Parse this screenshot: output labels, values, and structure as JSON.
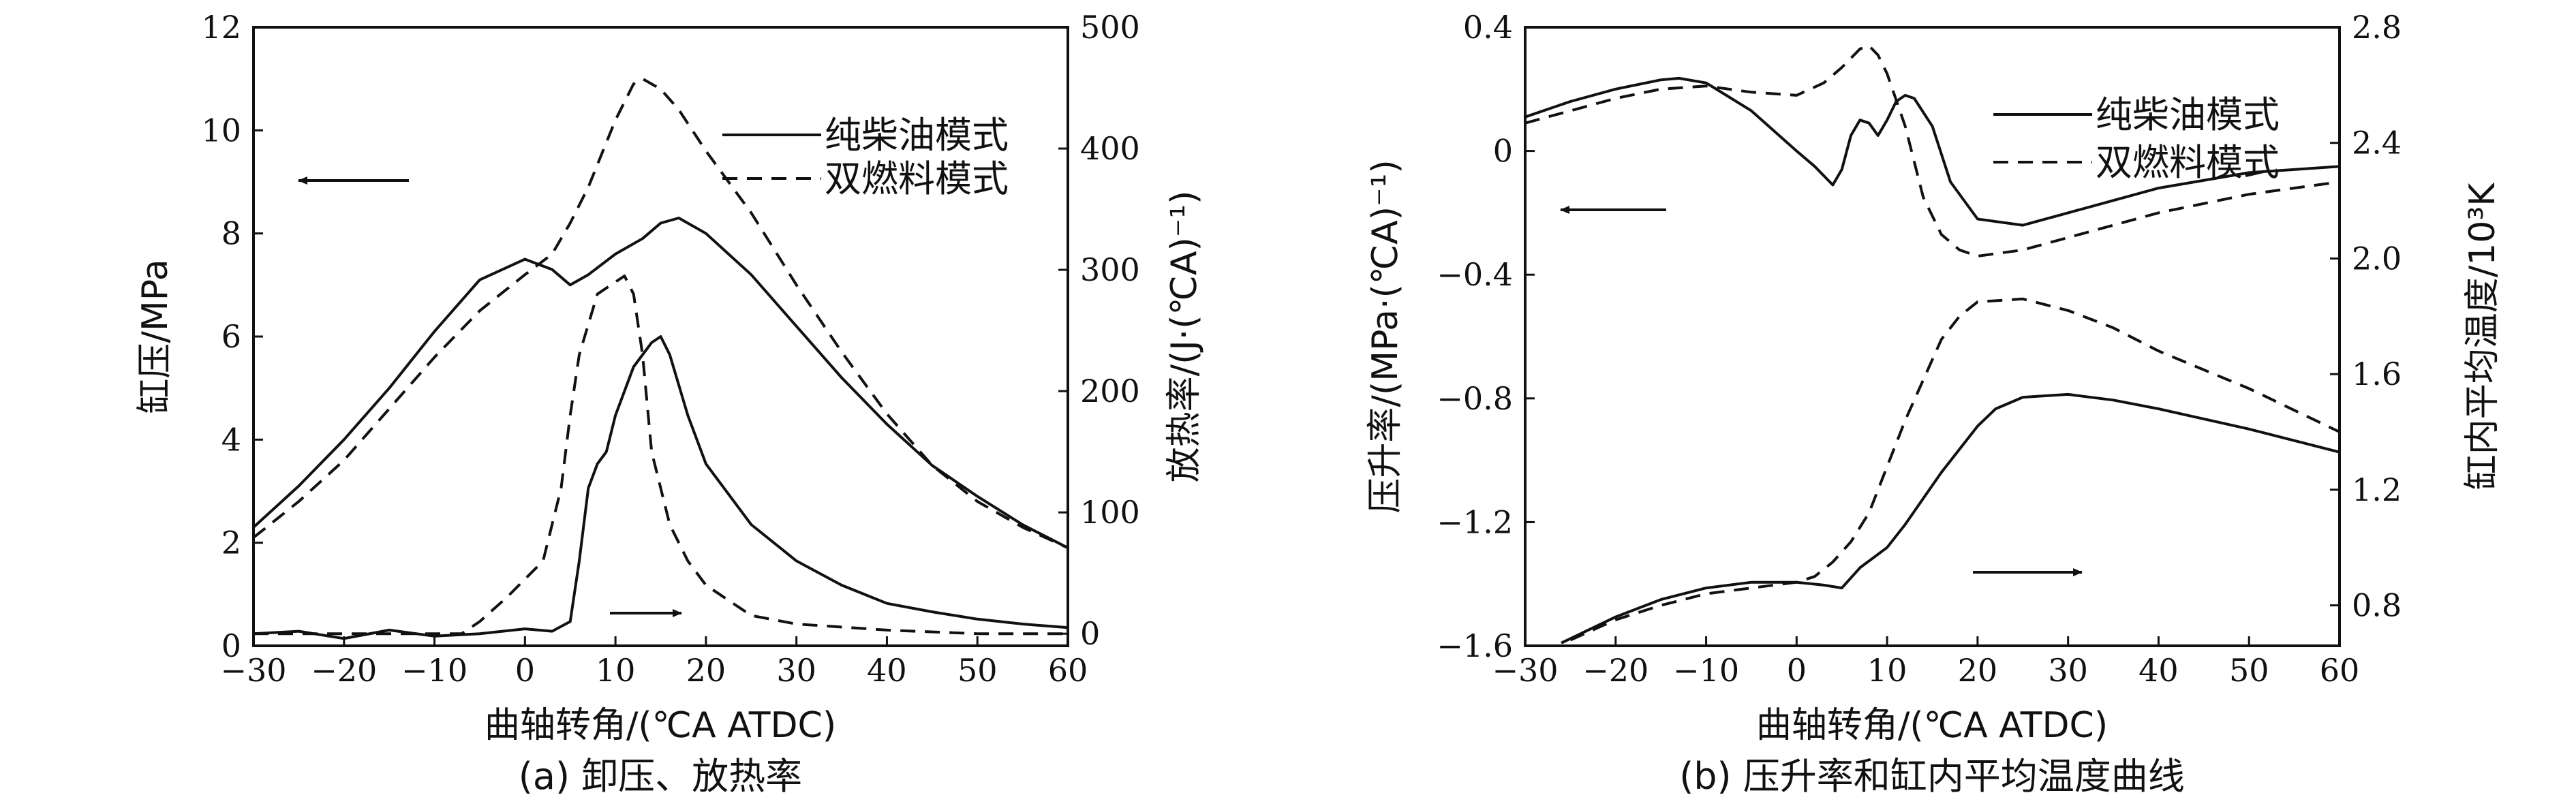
{
  "chart_data": [
    {
      "type": "line",
      "caption": "(a) 卸压、放热率",
      "xlabel": "曲轴转角/(℃A ATDC)",
      "ylabel": "缸压/MPa",
      "y2label": "放热率/(J·(℃A)⁻¹)",
      "xlim": [
        -30,
        60
      ],
      "ylim": [
        0,
        12
      ],
      "y2lim": [
        -10,
        500
      ],
      "xticks": [
        "−30",
        "−20",
        "−10",
        "0",
        "10",
        "20",
        "30",
        "40",
        "50",
        "60"
      ],
      "yticks": [
        "0",
        "2",
        "4",
        "6",
        "8",
        "10",
        "12"
      ],
      "y2ticks": [
        "0",
        "100",
        "200",
        "300",
        "400",
        "500"
      ],
      "legend": {
        "position": "top-right",
        "entries": [
          "纯柴油模式",
          "双燃料模式"
        ]
      },
      "arrows": [
        "left arrow → cylinder pressure axis",
        "right arrow → heat release rate axis"
      ],
      "series": [
        {
          "name": "纯柴油模式",
          "axis": "left",
          "style": "solid",
          "x": [
            -30,
            -25,
            -20,
            -15,
            -10,
            -5,
            0,
            3,
            5,
            7,
            10,
            13,
            15,
            17,
            20,
            25,
            30,
            35,
            40,
            45,
            50,
            55,
            60
          ],
          "y": [
            2.3,
            3.1,
            4.0,
            5.0,
            6.1,
            7.1,
            7.5,
            7.3,
            7.0,
            7.2,
            7.6,
            7.9,
            8.2,
            8.3,
            8.0,
            7.2,
            6.2,
            5.2,
            4.3,
            3.5,
            2.9,
            2.35,
            1.9
          ]
        },
        {
          "name": "双燃料模式",
          "axis": "left",
          "style": "dashed",
          "x": [
            -30,
            -25,
            -20,
            -15,
            -10,
            -5,
            0,
            3,
            5,
            7,
            10,
            12,
            13,
            15,
            17,
            20,
            25,
            30,
            35,
            40,
            45,
            50,
            55,
            60
          ],
          "y": [
            2.1,
            2.8,
            3.6,
            4.6,
            5.6,
            6.5,
            7.2,
            7.6,
            8.2,
            8.9,
            10.2,
            10.9,
            11.0,
            10.8,
            10.4,
            9.6,
            8.4,
            7.0,
            5.7,
            4.5,
            3.5,
            2.8,
            2.3,
            1.9
          ]
        },
        {
          "name": "纯柴油模式",
          "axis": "right",
          "style": "solid",
          "x": [
            -30,
            -25,
            -20,
            -15,
            -10,
            -5,
            0,
            3,
            5,
            6,
            7,
            8,
            9,
            10,
            12,
            14,
            15,
            16,
            18,
            20,
            25,
            30,
            35,
            40,
            45,
            50,
            55,
            60
          ],
          "y": [
            0,
            2,
            -4,
            3,
            -2,
            0,
            4,
            2,
            10,
            60,
            120,
            140,
            150,
            180,
            220,
            240,
            245,
            230,
            180,
            140,
            90,
            60,
            40,
            25,
            18,
            12,
            8,
            5
          ]
        },
        {
          "name": "双燃料模式",
          "axis": "right",
          "style": "dashed",
          "x": [
            -30,
            -20,
            -10,
            -7,
            -5,
            -2,
            0,
            2,
            4,
            5,
            6,
            8,
            10,
            11,
            12,
            13,
            14,
            16,
            18,
            20,
            25,
            30,
            40,
            50,
            60
          ],
          "y": [
            0,
            0,
            0,
            0,
            10,
            30,
            45,
            60,
            120,
            180,
            230,
            280,
            290,
            295,
            280,
            230,
            150,
            90,
            60,
            40,
            15,
            8,
            3,
            0,
            0
          ]
        }
      ]
    },
    {
      "type": "line",
      "caption": "(b) 压升率和缸内平均温度曲线",
      "xlabel": "曲轴转角/(℃A ATDC)",
      "ylabel": "压升率/(MPa·(℃A)⁻¹)",
      "y2label": "缸内平均温度/10³K",
      "xlim": [
        -30,
        60
      ],
      "ylim": [
        -1.6,
        0.4
      ],
      "y2lim": [
        0.66,
        2.8
      ],
      "xticks": [
        "−30",
        "−20",
        "−10",
        "0",
        "10",
        "20",
        "30",
        "40",
        "50",
        "60"
      ],
      "yticks": [
        "−1.6",
        "−1.2",
        "−0.8",
        "−0.4",
        "0",
        "0.4"
      ],
      "y2ticks": [
        "0.8",
        "1.2",
        "1.6",
        "2.0",
        "2.4",
        "2.8"
      ],
      "legend": {
        "position": "top-right",
        "entries": [
          "纯柴油模式",
          "双燃料模式"
        ]
      },
      "arrows": [
        "left arrow → pressure rise rate axis",
        "right arrow → mean temperature axis"
      ],
      "series": [
        {
          "name": "纯柴油模式",
          "axis": "left",
          "style": "solid",
          "x": [
            -30,
            -25,
            -20,
            -15,
            -13,
            -10,
            -5,
            0,
            2,
            4,
            5,
            6,
            7,
            8,
            9,
            10,
            11,
            12,
            13,
            15,
            17,
            20,
            25,
            30,
            40,
            50,
            60
          ],
          "y": [
            0.11,
            0.16,
            0.2,
            0.23,
            0.235,
            0.22,
            0.13,
            0.0,
            -0.05,
            -0.11,
            -0.06,
            0.05,
            0.1,
            0.09,
            0.05,
            0.1,
            0.16,
            0.18,
            0.17,
            0.08,
            -0.1,
            -0.22,
            -0.24,
            -0.2,
            -0.12,
            -0.07,
            -0.05
          ]
        },
        {
          "name": "双燃料模式",
          "axis": "left",
          "style": "dashed",
          "x": [
            -30,
            -25,
            -20,
            -15,
            -10,
            -5,
            0,
            3,
            5,
            7,
            8,
            9,
            10,
            12,
            14,
            16,
            18,
            20,
            25,
            30,
            40,
            50,
            60
          ],
          "y": [
            0.09,
            0.13,
            0.17,
            0.2,
            0.21,
            0.19,
            0.18,
            0.22,
            0.27,
            0.33,
            0.34,
            0.31,
            0.25,
            0.08,
            -0.15,
            -0.27,
            -0.32,
            -0.34,
            -0.32,
            -0.28,
            -0.2,
            -0.14,
            -0.1
          ]
        },
        {
          "name": "纯柴油模式",
          "axis": "right",
          "style": "solid",
          "x": [
            -26,
            -20,
            -15,
            -10,
            -5,
            0,
            3,
            5,
            7,
            10,
            12,
            14,
            16,
            18,
            20,
            22,
            25,
            30,
            35,
            40,
            50,
            60
          ],
          "y": [
            0.67,
            0.76,
            0.82,
            0.86,
            0.88,
            0.88,
            0.87,
            0.86,
            0.93,
            1.0,
            1.08,
            1.17,
            1.26,
            1.34,
            1.42,
            1.48,
            1.52,
            1.53,
            1.51,
            1.48,
            1.41,
            1.33
          ]
        },
        {
          "name": "双燃料模式",
          "axis": "right",
          "style": "dashed",
          "x": [
            -25,
            -20,
            -15,
            -10,
            -5,
            0,
            2,
            4,
            6,
            8,
            10,
            12,
            14,
            16,
            18,
            20,
            25,
            30,
            35,
            40,
            50,
            60
          ],
          "y": [
            0.68,
            0.75,
            0.8,
            0.84,
            0.86,
            0.88,
            0.9,
            0.95,
            1.02,
            1.12,
            1.28,
            1.44,
            1.58,
            1.72,
            1.8,
            1.85,
            1.86,
            1.82,
            1.76,
            1.68,
            1.55,
            1.4
          ]
        }
      ]
    }
  ]
}
